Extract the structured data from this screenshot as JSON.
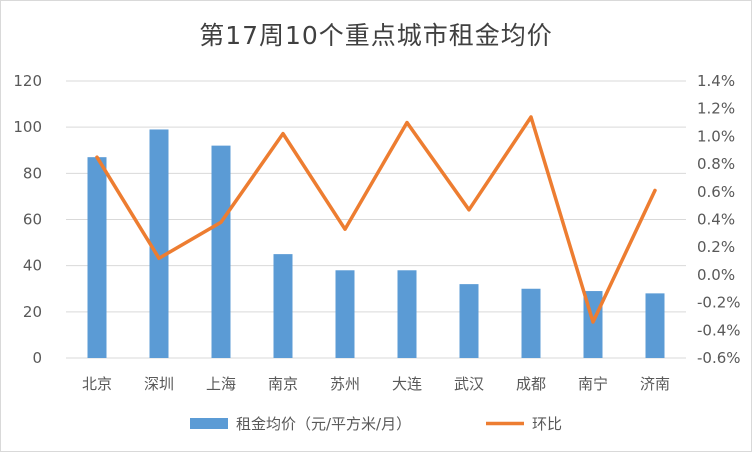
{
  "chart_data": {
    "type": "bar",
    "title": "第17周10个重点城市租金均价",
    "categories": [
      "北京",
      "深圳",
      "上海",
      "南京",
      "苏州",
      "大连",
      "武汉",
      "成都",
      "南宁",
      "济南"
    ],
    "series": [
      {
        "name": "租金均价（元/平方米/月）",
        "type": "bar",
        "axis": "left",
        "color": "#5b9bd5",
        "values": [
          87,
          99,
          92,
          45,
          38,
          38,
          32,
          30,
          29,
          28
        ]
      },
      {
        "name": "环比",
        "type": "line",
        "axis": "right",
        "color": "#ed7d31",
        "values": [
          0.85,
          0.12,
          0.38,
          1.02,
          0.33,
          1.1,
          0.47,
          1.14,
          -0.34,
          0.61
        ]
      }
    ],
    "y_left": {
      "min": 0,
      "max": 120,
      "ticks": [
        "0",
        "20",
        "40",
        "60",
        "80",
        "100",
        "120"
      ]
    },
    "y_right": {
      "min": -0.6,
      "max": 1.4,
      "ticks": [
        "-0.6%",
        "-0.4%",
        "-0.2%",
        "0.0%",
        "0.2%",
        "0.4%",
        "0.6%",
        "0.8%",
        "1.0%",
        "1.2%",
        "1.4%"
      ]
    },
    "grid": true,
    "legend": "bottom"
  }
}
